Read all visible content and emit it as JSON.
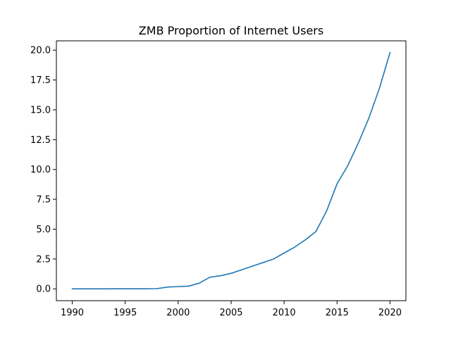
{
  "chart_data": {
    "type": "line",
    "title": "ZMB Proportion of Internet Users",
    "xlabel": "",
    "ylabel": "",
    "xlim": [
      1988.5,
      2021.5
    ],
    "ylim": [
      -0.99,
      20.78
    ],
    "x_ticks": [
      "1990",
      "1995",
      "2000",
      "2005",
      "2010",
      "2015",
      "2020"
    ],
    "y_ticks": [
      "0.0",
      "2.5",
      "5.0",
      "7.5",
      "10.0",
      "12.5",
      "15.0",
      "17.5",
      "20.0"
    ],
    "grid": false,
    "series": [
      {
        "color": "#1f77b4",
        "x": [
          1990,
          1991,
          1992,
          1993,
          1994,
          1995,
          1996,
          1997,
          1998,
          1999,
          2000,
          2001,
          2002,
          2003,
          2004,
          2005,
          2006,
          2007,
          2008,
          2009,
          2010,
          2011,
          2012,
          2013,
          2014,
          2015,
          2016,
          2017,
          2018,
          2019,
          2020
        ],
        "values": [
          0.0,
          0.0,
          0.0,
          0.0,
          0.01,
          0.01,
          0.01,
          0.01,
          0.02,
          0.15,
          0.19,
          0.23,
          0.48,
          0.98,
          1.1,
          1.3,
          1.6,
          1.9,
          2.2,
          2.5,
          3.0,
          3.5,
          4.1,
          4.8,
          6.5,
          8.8,
          10.3,
          12.2,
          14.3,
          16.8,
          19.8
        ]
      }
    ]
  }
}
